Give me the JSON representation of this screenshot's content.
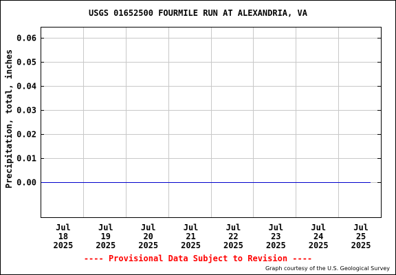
{
  "chart_data": {
    "type": "line",
    "title": "USGS 01652500 FOURMILE RUN AT ALEXANDRIA, VA",
    "xlabel": "",
    "ylabel": "Precipitation, total, inches",
    "ylim": [
      -0.0145,
      0.0645
    ],
    "yticks": [
      "0.06",
      "0.05",
      "0.04",
      "0.03",
      "0.02",
      "0.01",
      "0.00"
    ],
    "ytick_values": [
      0.06,
      0.05,
      0.04,
      0.03,
      0.02,
      0.01,
      0.0
    ],
    "xticks": [
      {
        "line1": "Jul",
        "line2": "18",
        "line3": "2025"
      },
      {
        "line1": "Jul",
        "line2": "19",
        "line3": "2025"
      },
      {
        "line1": "Jul",
        "line2": "20",
        "line3": "2025"
      },
      {
        "line1": "Jul",
        "line2": "21",
        "line3": "2025"
      },
      {
        "line1": "Jul",
        "line2": "22",
        "line3": "2025"
      },
      {
        "line1": "Jul",
        "line2": "23",
        "line3": "2025"
      },
      {
        "line1": "Jul",
        "line2": "24",
        "line3": "2025"
      },
      {
        "line1": "Jul",
        "line2": "25",
        "line3": "2025"
      }
    ],
    "xlim": [
      "2025-07-17",
      "2025-07-25"
    ],
    "grid": true,
    "series": [
      {
        "color": "#0000cc",
        "x": [
          "2025-07-17",
          "2025-07-25"
        ],
        "values": [
          0.0,
          0.0
        ]
      }
    ]
  },
  "footer": {
    "provisional": "---- Provisional Data Subject to Revision ----",
    "credit": "Graph courtesy of the U.S. Geological Survey"
  }
}
